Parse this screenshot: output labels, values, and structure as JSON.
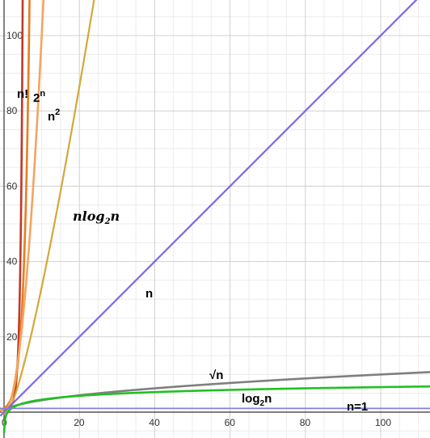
{
  "chart_data": {
    "type": "line",
    "xlim": [
      0,
      112
    ],
    "ylim": [
      0,
      112
    ],
    "x_ticks": [
      "0",
      "20",
      "40",
      "60",
      "80",
      "100"
    ],
    "y_ticks": [
      "20",
      "40",
      "60",
      "80",
      "100"
    ],
    "grid": true,
    "colors": {
      "factorial": "#c0392b",
      "exp": "#e67e22",
      "square": "#f4a460",
      "nlogn": "#d4a838",
      "linear": "#7b68ee",
      "sqrt": "#7f7f7f",
      "log": "#22c022",
      "const": "#8080e0"
    },
    "series": [
      {
        "key": "factorial",
        "name_main": "n!",
        "name_sup": "",
        "name_sub": "",
        "name_tail": ""
      },
      {
        "key": "exp",
        "name_main": "2",
        "name_sup": "n",
        "name_sub": "",
        "name_tail": ""
      },
      {
        "key": "square",
        "name_main": "n",
        "name_sup": "2",
        "name_sub": "",
        "name_tail": ""
      },
      {
        "key": "nlogn",
        "name_main": "nlog",
        "name_sup": "",
        "name_sub": "2",
        "name_tail": "n"
      },
      {
        "key": "linear",
        "name_main": "n",
        "name_sup": "",
        "name_sub": "",
        "name_tail": ""
      },
      {
        "key": "sqrt",
        "name_main": "√n",
        "name_sup": "",
        "name_sub": "",
        "name_tail": ""
      },
      {
        "key": "log",
        "name_main": "log",
        "name_sup": "",
        "name_sub": "2",
        "name_tail": "n"
      },
      {
        "key": "const",
        "name_main": "n=1",
        "name_sup": "",
        "name_sub": "",
        "name_tail": ""
      }
    ]
  }
}
